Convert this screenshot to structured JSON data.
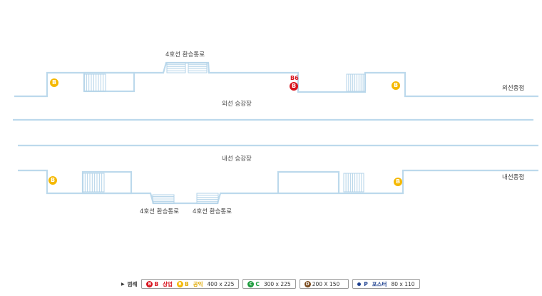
{
  "labels": {
    "transfer_top": "4호선 환승통로",
    "outer_platform": "외선 승강장",
    "outer_direction": "외선종점",
    "inner_platform": "내선 승강장",
    "inner_direction": "내선종점",
    "transfer_bottom_left": "4호선 환승통로",
    "transfer_bottom_right": "4호선 환승통로",
    "b6": "B6"
  },
  "badges": {
    "b": "B"
  },
  "legend": {
    "title": "범례",
    "b_red": "B",
    "b_red_text": "상업",
    "b_yellow": "B",
    "b_yellow_text": "공익",
    "b_size": "400 x 225",
    "c_letter": "C",
    "c_size": "300 x 225",
    "d_letter": "D",
    "d_size": "200 X 150",
    "p_letter": "P",
    "p_text": "포스터",
    "p_size": "80 x 110"
  },
  "colors": {
    "outline": "#bcd9ec",
    "stairs": "#b3d3e8",
    "red": "#d8141e",
    "yellow": "#f5b800",
    "green": "#1a9a3a",
    "brown": "#7a4a1c",
    "blue": "#1c3f8f"
  }
}
